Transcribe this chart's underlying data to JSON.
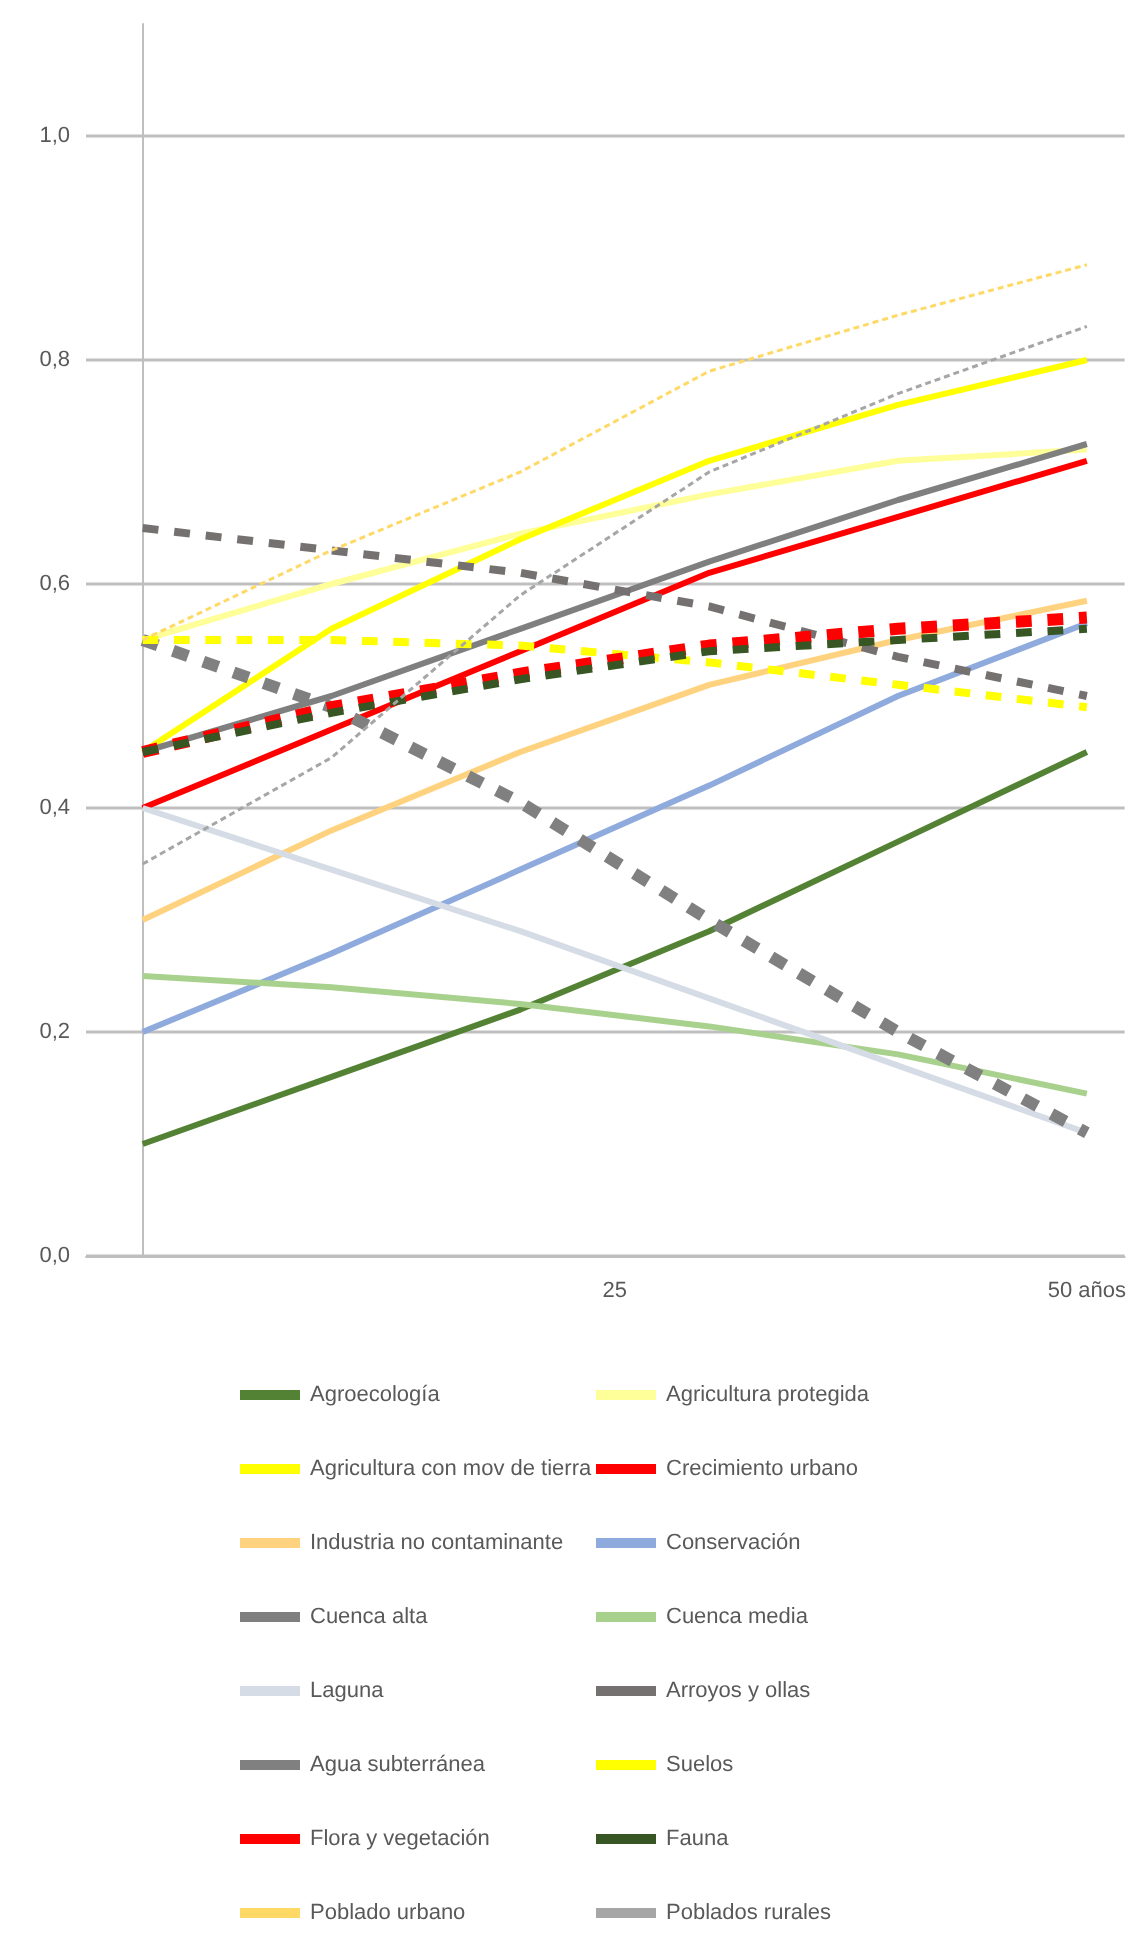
{
  "chart_data": {
    "type": "line",
    "x": [
      0,
      10,
      20,
      30,
      40,
      50
    ],
    "xlim": [
      -3,
      52
    ],
    "xticks": [
      25,
      {
        "value": 50,
        "label": "50 años"
      }
    ],
    "ylim": [
      0,
      1.1
    ],
    "yticks": [
      {
        "value": 0,
        "label": "0,0"
      },
      {
        "value": 0.2,
        "label": "0,2"
      },
      {
        "value": 0.4,
        "label": "0,4"
      },
      {
        "value": 0.6,
        "label": "0,6"
      },
      {
        "value": 0.8,
        "label": "0,8"
      },
      {
        "value": 1.0,
        "label": "1,0"
      }
    ],
    "grid": "y",
    "legend": "bottom",
    "marker": "none",
    "series": [
      {
        "name": "Agroecología",
        "color": "#548235",
        "line_style": "solid",
        "values": [
          0.1,
          0.16,
          0.22,
          0.29,
          0.37,
          0.45
        ]
      },
      {
        "name": "Agricultura protegida",
        "color": "#ffff99",
        "line_style": "solid",
        "values": [
          0.55,
          0.6,
          0.645,
          0.68,
          0.71,
          0.72
        ]
      },
      {
        "name": "Agricultura con mov de tierra",
        "color": "#ffff00",
        "line_style": "solid",
        "values": [
          0.45,
          0.56,
          0.64,
          0.71,
          0.76,
          0.8
        ]
      },
      {
        "name": "Crecimiento urbano",
        "color": "#ff0000",
        "line_style": "solid",
        "values": [
          0.4,
          0.47,
          0.54,
          0.61,
          0.66,
          0.71
        ]
      },
      {
        "name": "Industria no contaminante",
        "color": "#ffd27f",
        "line_style": "solid",
        "values": [
          0.3,
          0.38,
          0.45,
          0.51,
          0.55,
          0.585
        ]
      },
      {
        "name": "Conservación",
        "color": "#8faadc",
        "line_style": "solid",
        "values": [
          0.2,
          0.27,
          0.345,
          0.42,
          0.5,
          0.565
        ]
      },
      {
        "name": "Cuenca alta",
        "color": "#7f7f7f",
        "line_style": "solid",
        "values": [
          0.45,
          0.5,
          0.56,
          0.62,
          0.675,
          0.725
        ]
      },
      {
        "name": "Cuenca media",
        "color": "#a9d18e",
        "line_style": "solid",
        "values": [
          0.25,
          0.24,
          0.225,
          0.205,
          0.18,
          0.145
        ]
      },
      {
        "name": "Laguna",
        "color": "#d6dce5",
        "line_style": "solid",
        "values": [
          0.4,
          0.345,
          0.29,
          0.23,
          0.17,
          0.11
        ]
      },
      {
        "name": "Arroyos y ollas",
        "color": "#767171",
        "line_style": "dashed",
        "values": [
          0.65,
          0.63,
          0.61,
          0.58,
          0.535,
          0.5
        ]
      },
      {
        "name": "Agua subterránea",
        "color": "#808080",
        "line_style": "dashed",
        "values": [
          0.55,
          0.49,
          0.405,
          0.3,
          0.2,
          0.11
        ]
      },
      {
        "name": "Suelos",
        "color": "#ffff00",
        "line_style": "dashed",
        "values": [
          0.55,
          0.55,
          0.545,
          0.53,
          0.51,
          0.49
        ]
      },
      {
        "name": "Flora y vegetación",
        "color": "#ff0000",
        "line_style": "dashed",
        "values": [
          0.45,
          0.49,
          0.52,
          0.545,
          0.56,
          0.57
        ]
      },
      {
        "name": "Fauna",
        "color": "#375623",
        "line_style": "dashed",
        "values": [
          0.45,
          0.485,
          0.515,
          0.54,
          0.55,
          0.56
        ]
      },
      {
        "name": "Poblado urbano",
        "color": "#ffd966",
        "line_style": "dotted",
        "values": [
          0.55,
          0.63,
          0.7,
          0.79,
          0.84,
          0.885
        ]
      },
      {
        "name": "Poblados rurales",
        "color": "#a6a6a6",
        "line_style": "dotted",
        "values": [
          0.35,
          0.445,
          0.59,
          0.7,
          0.77,
          0.83
        ]
      }
    ]
  }
}
